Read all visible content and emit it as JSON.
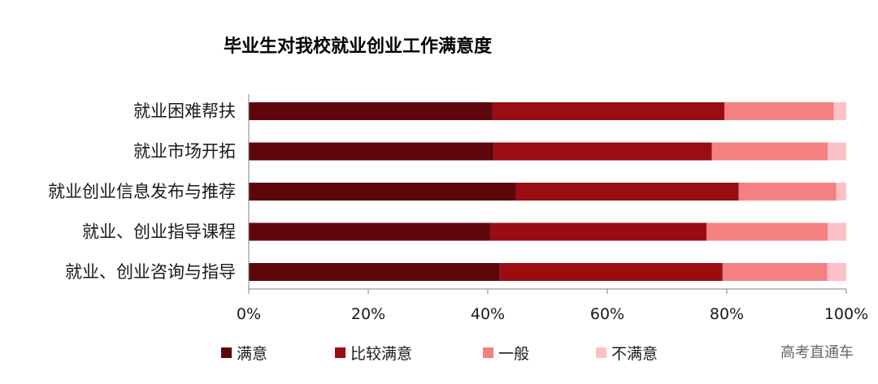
{
  "watermark": "高考直通车",
  "chart_data": {
    "type": "bar",
    "orientation": "horizontal",
    "stacked": true,
    "title": "毕业生对我校就业创业工作满意度",
    "categories": [
      "就业困难帮扶",
      "就业市场开拓",
      "就业创业信息发布与推荐",
      "就业、创业指导课程",
      "就业、创业咨询与指导"
    ],
    "x_ticks": [
      "0%",
      "20%",
      "40%",
      "60%",
      "80%",
      "100%"
    ],
    "xlim": [
      0,
      100
    ],
    "legend_position": "bottom",
    "series": [
      {
        "name": "满意",
        "color": "#5e060c",
        "values": [
          40.8,
          41.0,
          44.7,
          40.4,
          42.0
        ]
      },
      {
        "name": "比较满意",
        "color": "#990d13",
        "values": [
          38.8,
          36.5,
          37.3,
          36.2,
          37.3
        ]
      },
      {
        "name": "一般",
        "color": "#f48081",
        "values": [
          18.3,
          19.4,
          16.3,
          20.3,
          17.5
        ]
      },
      {
        "name": "不满意",
        "color": "#fbc1c6",
        "values": [
          2.1,
          3.1,
          1.7,
          3.1,
          3.2
        ]
      }
    ]
  }
}
